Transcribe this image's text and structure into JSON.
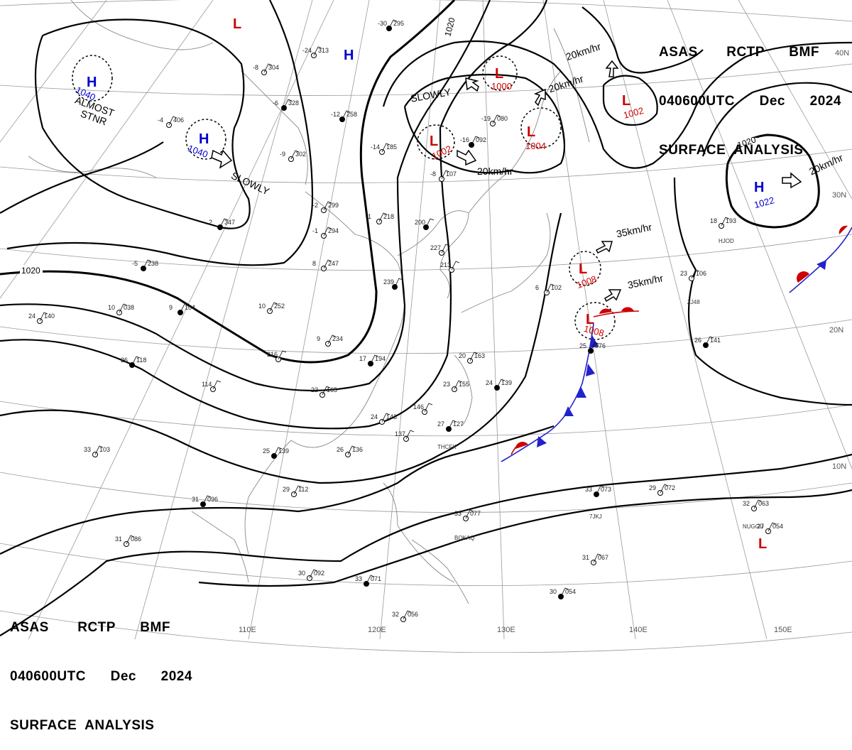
{
  "header": {
    "line1": "ASAS       RCTP      BMF",
    "line2": "040600UTC      Dec      2024",
    "line3": "SURFACE  ANALYSIS"
  },
  "lat_labels": [
    "40N",
    "30N",
    "20N",
    "10N"
  ],
  "lon_labels": [
    "110E",
    "120E",
    "130E",
    "140E",
    "150E"
  ],
  "isobar_labels": [
    "1020",
    "1020",
    "1020"
  ],
  "centers": [
    {
      "type": "H",
      "pressure": "1040",
      "color": "#0000cc"
    },
    {
      "type": "H",
      "pressure": "1040",
      "color": "#0000cc"
    },
    {
      "type": "H",
      "pressure": "",
      "color": "#0000cc"
    },
    {
      "type": "H",
      "pressure": "1022",
      "color": "#0000cc"
    },
    {
      "type": "L",
      "pressure": "",
      "color": "#cc0000"
    },
    {
      "type": "L",
      "pressure": "1000",
      "color": "#cc0000"
    },
    {
      "type": "L",
      "pressure": "1002",
      "color": "#cc0000"
    },
    {
      "type": "L",
      "pressure": "1004",
      "color": "#cc0000"
    },
    {
      "type": "L",
      "pressure": "1002",
      "color": "#cc0000"
    },
    {
      "type": "L",
      "pressure": "1008",
      "color": "#cc0000"
    },
    {
      "type": "L",
      "pressure": "1008",
      "color": "#cc0000"
    },
    {
      "type": "L",
      "pressure": "",
      "color": "#cc0000"
    }
  ],
  "motion_labels": [
    "SLOWLY",
    "SLOWLY",
    "20km/hr",
    "20km/hr",
    "20km/hr",
    "20km/hr",
    "35km/hr",
    "35km/hr",
    "ALMOST",
    "STNR"
  ],
  "stations": [
    {
      "t": "-30",
      "p": "295"
    },
    {
      "t": "-24",
      "p": "313"
    },
    {
      "t": "-8",
      "p": "304"
    },
    {
      "t": "-6",
      "p": "328"
    },
    {
      "t": "-4",
      "p": "406"
    },
    {
      "t": "-9",
      "p": "302"
    },
    {
      "t": "-12",
      "p": "258"
    },
    {
      "t": "-14",
      "p": "185"
    },
    {
      "t": "-19",
      "p": "080"
    },
    {
      "t": "-16",
      "p": "092"
    },
    {
      "t": "-8",
      "p": "107"
    },
    {
      "t": "-2",
      "p": "299"
    },
    {
      "t": "2",
      "p": "347"
    },
    {
      "t": "-1",
      "p": "294"
    },
    {
      "t": "1",
      "p": "218"
    },
    {
      "t": "-5",
      "p": "238"
    },
    {
      "t": "8",
      "p": "247"
    },
    {
      "t": "10",
      "p": "038"
    },
    {
      "t": "9",
      "p": "104"
    },
    {
      "t": "10",
      "p": "252"
    },
    {
      "t": "24",
      "p": "140"
    },
    {
      "t": "26",
      "p": "118"
    },
    {
      "t": "9",
      "p": "234"
    },
    {
      "t": "216",
      "p": ""
    },
    {
      "t": "17",
      "p": "194"
    },
    {
      "t": "22",
      "p": "165"
    },
    {
      "t": "114",
      "p": ""
    },
    {
      "t": "200",
      "p": ""
    },
    {
      "t": "227",
      "p": ""
    },
    {
      "t": "213",
      "p": ""
    },
    {
      "t": "239",
      "p": ""
    },
    {
      "t": "20",
      "p": "163"
    },
    {
      "t": "23",
      "p": "155"
    },
    {
      "t": "24",
      "p": "139"
    },
    {
      "t": "146",
      "p": ""
    },
    {
      "t": "24",
      "p": "143"
    },
    {
      "t": "27",
      "p": "127"
    },
    {
      "t": "137",
      "p": ""
    },
    {
      "t": "26",
      "p": "136"
    },
    {
      "t": "25",
      "p": "139"
    },
    {
      "t": "33",
      "p": "103"
    },
    {
      "t": "29",
      "p": "112"
    },
    {
      "t": "31",
      "p": "096"
    },
    {
      "t": "31",
      "p": "086"
    },
    {
      "t": "30",
      "p": "092"
    },
    {
      "t": "33",
      "p": "071"
    },
    {
      "t": "32",
      "p": "056"
    },
    {
      "t": "33",
      "p": "077"
    },
    {
      "t": "33",
      "p": "073"
    },
    {
      "t": "29",
      "p": "072"
    },
    {
      "t": "31",
      "p": "067"
    },
    {
      "t": "30",
      "p": "054"
    },
    {
      "t": "32",
      "p": "063"
    },
    {
      "t": "27",
      "p": "054"
    },
    {
      "t": "26",
      "p": "141"
    },
    {
      "t": "23",
      "p": "106"
    },
    {
      "t": "18",
      "p": "193"
    },
    {
      "t": "25",
      "p": "076"
    },
    {
      "t": "6",
      "p": "102"
    }
  ],
  "station_ids": [
    "THCFK",
    "BQKAQ",
    "7JKJ",
    "NUGGU",
    "ZJ48",
    "HJOD"
  ]
}
